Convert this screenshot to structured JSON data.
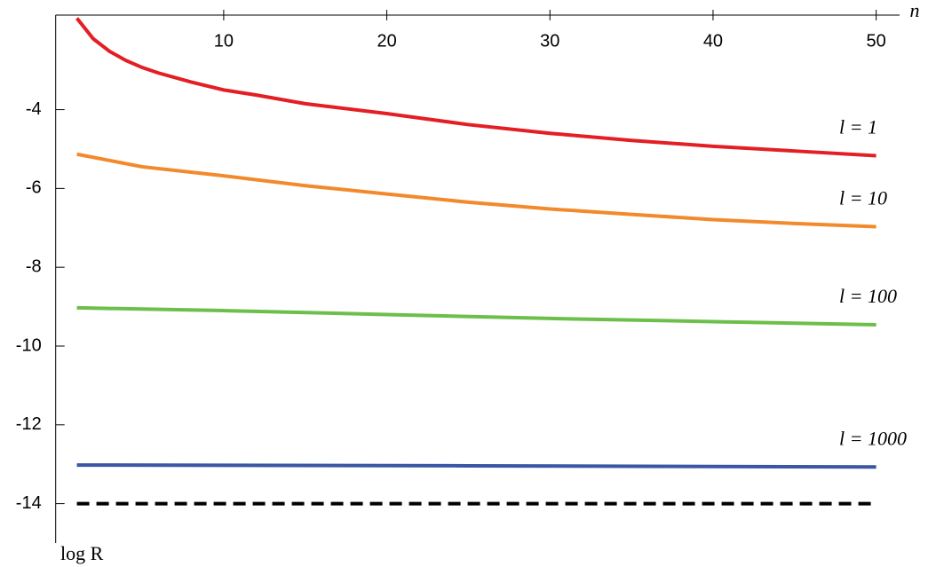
{
  "chart_data": {
    "type": "line",
    "xlabel": "n",
    "ylabel": "log R",
    "xlim": [
      -0.3,
      51
    ],
    "ylim": [
      -15,
      -1.6
    ],
    "xticks": [
      10,
      20,
      30,
      40,
      50
    ],
    "yticks": [
      -4,
      -6,
      -8,
      -10,
      -12,
      -14
    ],
    "series": [
      {
        "name": "l = 1",
        "color": "#e31e24",
        "x": [
          1,
          2,
          3,
          4,
          5,
          6,
          8,
          10,
          12,
          15,
          20,
          25,
          30,
          35,
          40,
          45,
          50
        ],
        "values": [
          -1.68,
          -2.2,
          -2.52,
          -2.75,
          -2.93,
          -3.07,
          -3.3,
          -3.5,
          -3.63,
          -3.85,
          -4.1,
          -4.38,
          -4.6,
          -4.78,
          -4.93,
          -5.05,
          -5.17
        ]
      },
      {
        "name": "l = 10",
        "color": "#f28a2c",
        "x": [
          1,
          5,
          10,
          15,
          20,
          25,
          30,
          35,
          40,
          45,
          50
        ],
        "values": [
          -5.13,
          -5.45,
          -5.68,
          -5.93,
          -6.14,
          -6.35,
          -6.52,
          -6.66,
          -6.79,
          -6.89,
          -6.97
        ]
      },
      {
        "name": "l = 100",
        "color": "#6cbf4a",
        "x": [
          1,
          10,
          20,
          30,
          40,
          50
        ],
        "values": [
          -9.03,
          -9.1,
          -9.2,
          -9.3,
          -9.38,
          -9.46
        ]
      },
      {
        "name": "l = 1000",
        "color": "#3a56a5",
        "x": [
          1,
          25,
          50
        ],
        "values": [
          -13.02,
          -13.04,
          -13.07
        ]
      },
      {
        "color": "#000000",
        "dash": true,
        "x": [
          1,
          50
        ],
        "values": [
          -14,
          -14
        ]
      }
    ]
  }
}
